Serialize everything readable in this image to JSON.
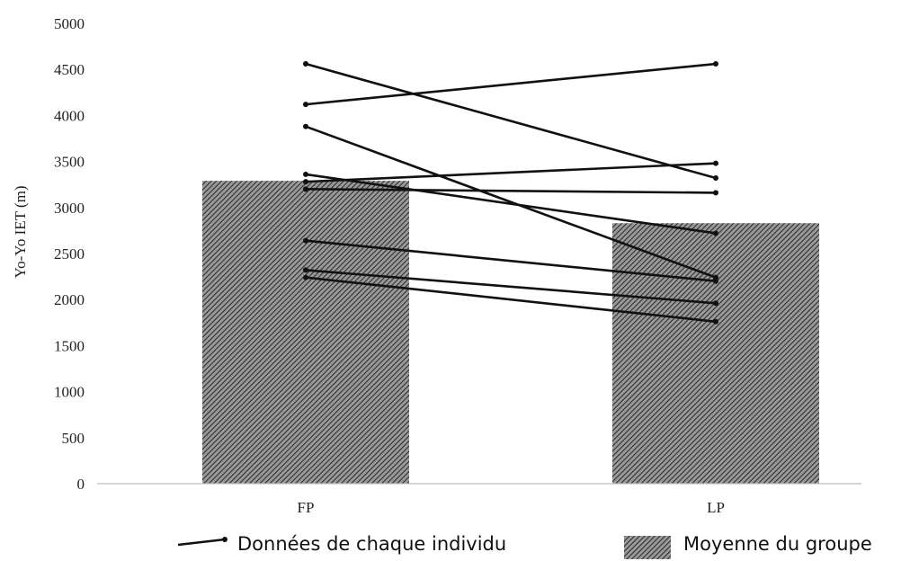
{
  "chart_data": {
    "type": "bar",
    "ylabel": "Yo-Yo IET (m)",
    "xlabel": "",
    "ylim": [
      0,
      5000
    ],
    "yticks": [
      0,
      500,
      1000,
      1500,
      2000,
      2500,
      3000,
      3500,
      4000,
      4500,
      5000
    ],
    "categories": [
      "FP",
      "LP"
    ],
    "series": [
      {
        "name": "Moyenne du groupe",
        "kind": "bar",
        "values": [
          3290,
          2830
        ]
      }
    ],
    "individuals": {
      "name": "Données de chaque individu",
      "kind": "line",
      "pairs": [
        [
          4560,
          3320
        ],
        [
          4120,
          4560
        ],
        [
          3880,
          2240
        ],
        [
          3360,
          2720
        ],
        [
          3280,
          3480
        ],
        [
          3200,
          3160
        ],
        [
          2640,
          2200
        ],
        [
          2320,
          1960
        ],
        [
          2240,
          1760
        ]
      ]
    },
    "grid": false,
    "legend_position": "bottom",
    "colors": {
      "bar_fill": "#8a8a8a",
      "bar_hatch": "#2e2e2e",
      "line": "#111111",
      "axis": "#bdbdbd"
    }
  },
  "legend": {
    "individual_label": "Données de chaque individu",
    "mean_label": "Moyenne du groupe"
  }
}
